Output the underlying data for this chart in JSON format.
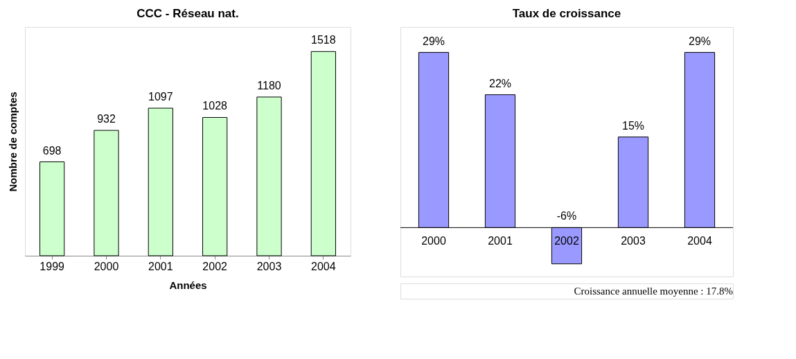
{
  "chart_data": [
    {
      "type": "bar",
      "title": "CCC - Réseau nat.",
      "xlabel": "Années",
      "ylabel": "Nombre de comptes",
      "categories": [
        "1999",
        "2000",
        "2001",
        "2002",
        "2003",
        "2004"
      ],
      "values": [
        698,
        932,
        1097,
        1028,
        1180,
        1518
      ],
      "color": "#ccffcc",
      "data_labels": true
    },
    {
      "type": "bar",
      "title": "Taux de croissance",
      "categories": [
        "2000",
        "2001",
        "2002",
        "2003",
        "2004"
      ],
      "values": [
        29,
        22,
        -6,
        15,
        29
      ],
      "value_labels": [
        "29%",
        "22%",
        "-6%",
        "15%",
        "29%"
      ],
      "color": "#9999ff",
      "annotations": [
        "Croissance annuelle moyenne : 17.8%"
      ]
    }
  ]
}
